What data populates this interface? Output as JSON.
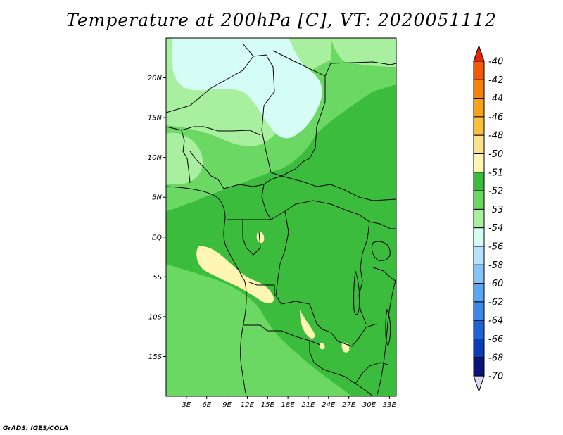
{
  "title": "Temperature at 200hPa [C], VT: 2020051112",
  "credit": "GrADS: IGES/COLA",
  "lat_ticks": [
    {
      "value": 20,
      "label": "20N"
    },
    {
      "value": 15,
      "label": "15N"
    },
    {
      "value": 10,
      "label": "10N"
    },
    {
      "value": 5,
      "label": "5N"
    },
    {
      "value": 0,
      "label": "EQ"
    },
    {
      "value": -5,
      "label": "5S"
    },
    {
      "value": -10,
      "label": "10S"
    },
    {
      "value": -15,
      "label": "15S"
    }
  ],
  "lon_ticks": [
    {
      "value": 3,
      "label": "3E"
    },
    {
      "value": 6,
      "label": "6E"
    },
    {
      "value": 9,
      "label": "9E"
    },
    {
      "value": 12,
      "label": "12E"
    },
    {
      "value": 15,
      "label": "15E"
    },
    {
      "value": 18,
      "label": "18E"
    },
    {
      "value": 21,
      "label": "21E"
    },
    {
      "value": 24,
      "label": "24E"
    },
    {
      "value": 27,
      "label": "27E"
    },
    {
      "value": 30,
      "label": "30E"
    },
    {
      "value": 33,
      "label": "33E"
    }
  ],
  "extent": {
    "lon_min": 0,
    "lon_max": 34,
    "lat_min": -20,
    "lat_max": 25
  },
  "colorbar": {
    "labels": [
      "-40",
      "-42",
      "-44",
      "-46",
      "-48",
      "-50",
      "-51",
      "-52",
      "-53",
      "-54",
      "-56",
      "-58",
      "-60",
      "-62",
      "-64",
      "-66",
      "-68",
      "-70"
    ],
    "colors": [
      "#e8250a",
      "#f05a0a",
      "#f5820a",
      "#f8a218",
      "#fac23c",
      "#fde28c",
      "#fff6b4",
      "#3cbc3c",
      "#6cd864",
      "#a8f0a0",
      "#d6fcf6",
      "#b4e2fe",
      "#84c4fa",
      "#5aa6f2",
      "#3c8ae6",
      "#1e64d2",
      "#0a3cb4",
      "#0a1478",
      "#d8d8f4"
    ]
  },
  "chart_data": {
    "type": "heatmap",
    "title": "Temperature at 200hPa [C], VT: 2020051112",
    "xlabel": "",
    "ylabel": "",
    "xlim": [
      0,
      34
    ],
    "ylim": [
      -20,
      25
    ],
    "x_ticks": [
      "3E",
      "6E",
      "9E",
      "12E",
      "15E",
      "18E",
      "21E",
      "24E",
      "27E",
      "30E",
      "33E"
    ],
    "y_ticks": [
      "20N",
      "15N",
      "10N",
      "5N",
      "EQ",
      "5S",
      "10S",
      "15S"
    ],
    "levels": [
      -70,
      -68,
      -66,
      -64,
      -62,
      -60,
      -58,
      -56,
      -54,
      -53,
      -52,
      -51,
      -50,
      -48,
      -46,
      -44,
      -42,
      -40
    ],
    "regions": [
      {
        "area": "northern interior (approx. 10N-25N, 11E-20E)",
        "value_range": [
          -54,
          -53
        ]
      },
      {
        "area": "western Sahel and north-central land",
        "value_range": [
          -53,
          -52
        ]
      },
      {
        "area": "equatorial belt and Congo basin",
        "value_range": [
          -52,
          -51
        ]
      },
      {
        "area": "southern Africa south of 10S",
        "value_range": [
          -53,
          -52
        ]
      },
      {
        "area": "coastal Angola patch (approx. 3S-8S, 5E-16E)",
        "value_range": [
          -51,
          -50
        ]
      }
    ]
  }
}
